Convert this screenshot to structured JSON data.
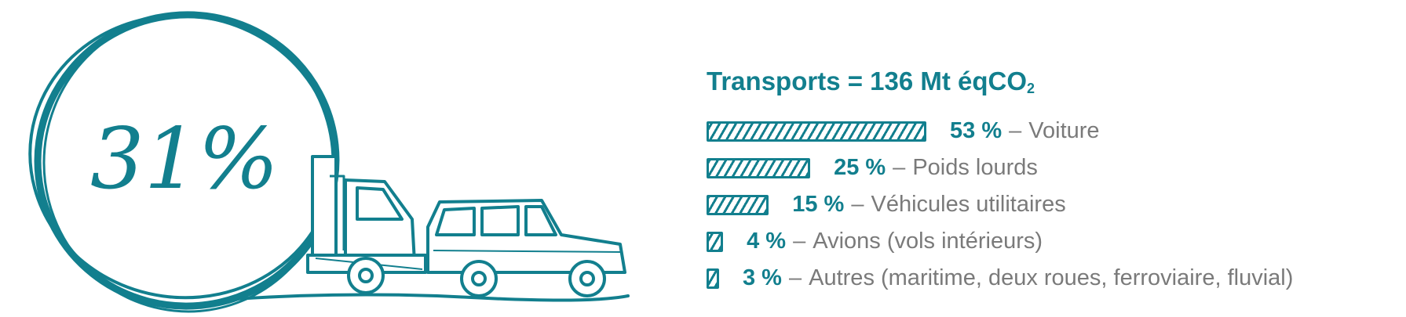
{
  "illustration": {
    "big_number": "31%",
    "circle_color": "#127f8e",
    "drawing": "tow-truck-and-car-icon"
  },
  "chart_data": {
    "type": "bar",
    "title_main": "Transports = 136 Mt éqCO",
    "title_sub": "2",
    "unit": "%",
    "bar_color": "#127f8e",
    "categories": [
      "Voiture",
      "Poids lourds",
      "Véhicules utilitaires",
      "Avions (vols intérieurs)",
      "Autres (maritime, deux roues, ferroviaire, fluvial)"
    ],
    "values": [
      53,
      25,
      15,
      4,
      3
    ],
    "value_labels": [
      "53 %",
      "25 %",
      "15 %",
      "4 %",
      "3 %"
    ],
    "separator": "–"
  }
}
